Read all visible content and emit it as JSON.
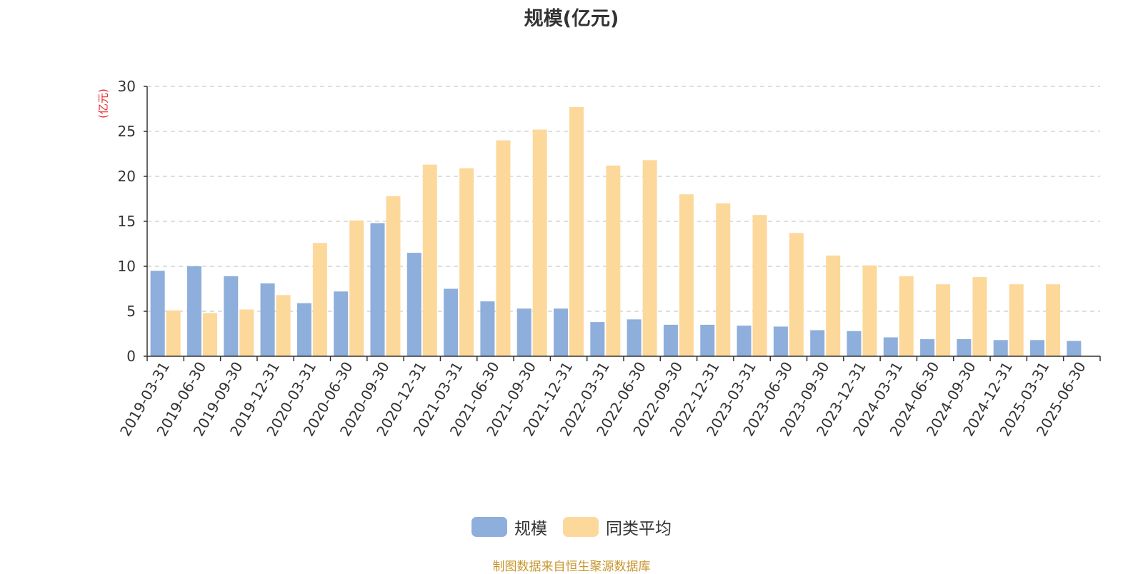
{
  "chart_data": {
    "type": "bar",
    "title": "规模(亿元)",
    "ylabel": "(亿元)",
    "xlabel": "",
    "ylim": [
      0,
      30
    ],
    "yticks": [
      0,
      5,
      10,
      15,
      20,
      25,
      30
    ],
    "grid": true,
    "legend_position": "bottom-center",
    "categories": [
      "2019-03-31",
      "2019-06-30",
      "2019-09-30",
      "2019-12-31",
      "2020-03-31",
      "2020-06-30",
      "2020-09-30",
      "2020-12-31",
      "2021-03-31",
      "2021-06-30",
      "2021-09-30",
      "2021-12-31",
      "2022-03-31",
      "2022-06-30",
      "2022-09-30",
      "2022-12-31",
      "2023-03-31",
      "2023-06-30",
      "2023-09-30",
      "2023-12-31",
      "2024-03-31",
      "2024-06-30",
      "2024-09-30",
      "2024-12-31",
      "2025-03-31",
      "2025-06-30"
    ],
    "series": [
      {
        "name": "规模",
        "color": "#8eaedb",
        "values": [
          9.5,
          10.0,
          8.9,
          8.1,
          5.9,
          7.2,
          14.8,
          11.5,
          7.5,
          6.1,
          5.3,
          5.3,
          3.8,
          4.1,
          3.5,
          3.5,
          3.4,
          3.3,
          2.9,
          2.8,
          2.1,
          1.9,
          1.9,
          1.8,
          1.8,
          1.7
        ]
      },
      {
        "name": "同类平均",
        "color": "#fdd89b",
        "values": [
          5.1,
          4.8,
          5.2,
          6.8,
          12.6,
          15.1,
          17.8,
          21.3,
          20.9,
          24.0,
          25.2,
          27.7,
          21.2,
          21.8,
          18.0,
          17.0,
          15.7,
          13.7,
          11.2,
          10.1,
          8.9,
          8.0,
          8.8,
          8.0,
          8.0,
          null
        ]
      }
    ]
  },
  "source_note": "制图数据来自恒生聚源数据库",
  "colors": {
    "series_1": "#8eaedb",
    "series_2": "#fdd89b",
    "ylabel": "#e8262d",
    "source_note": "#c8962e",
    "grid": "#cccccc",
    "axis": "#333333"
  }
}
